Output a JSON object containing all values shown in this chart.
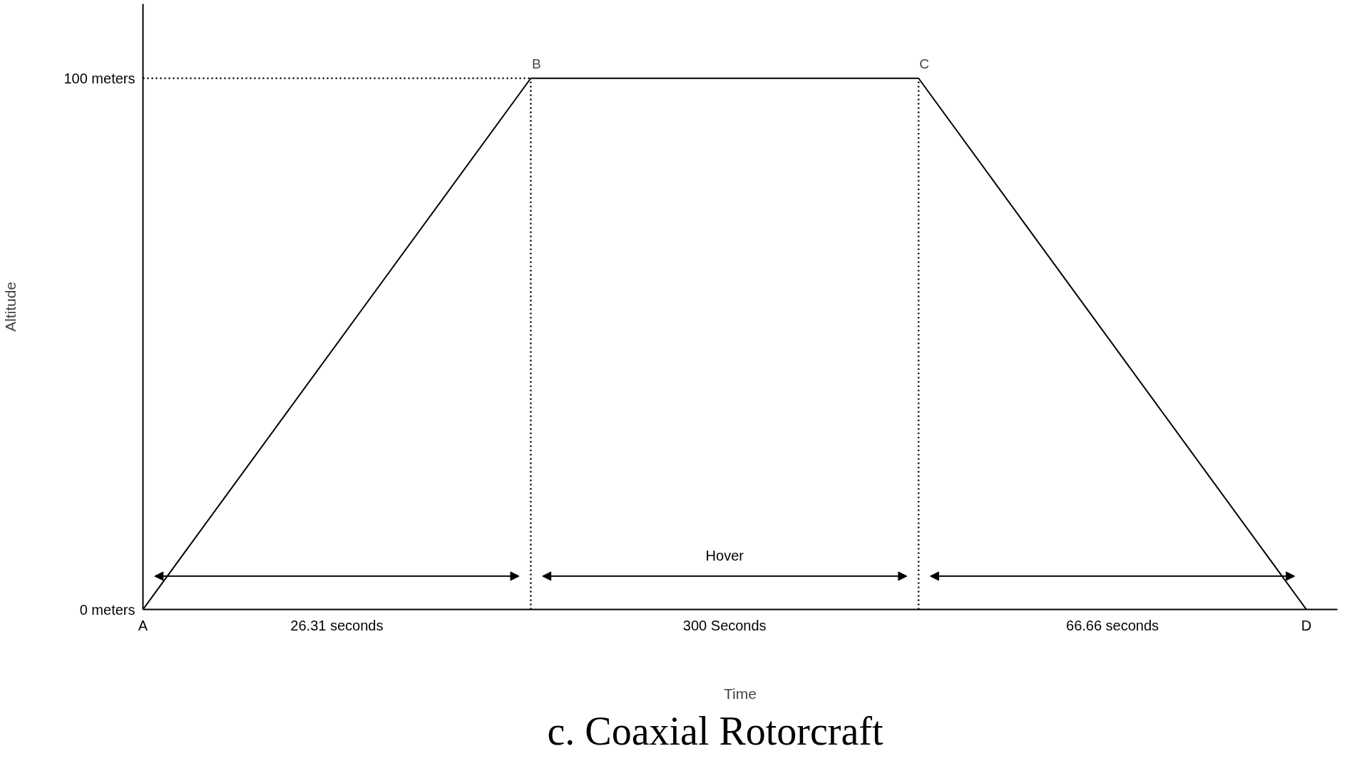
{
  "chart_data": {
    "type": "line",
    "title": "c.      Coaxial Rotorcraft",
    "xlabel": "Time",
    "ylabel": "Altitude",
    "categories": [
      "A",
      "B",
      "C",
      "D"
    ],
    "values": [
      0,
      100,
      100,
      0
    ],
    "color": "#000000",
    "ylim": [
      0,
      114
    ],
    "yticks": [
      {
        "value": 0,
        "label": "0 meters"
      },
      {
        "value": 100,
        "label": "100 meters"
      }
    ],
    "ref_lines": [
      {
        "axis": "y",
        "value": 100,
        "line_style": "dotted"
      },
      {
        "axis": "x",
        "value": "B",
        "line_style": "dotted"
      },
      {
        "axis": "x",
        "value": "C",
        "line_style": "dotted"
      }
    ],
    "annotations": [
      "Hover",
      "26.31 seconds",
      "300 Seconds",
      "66.66 seconds"
    ]
  }
}
